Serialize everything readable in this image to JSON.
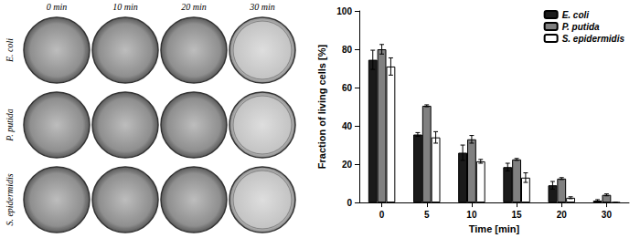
{
  "plates": {
    "columns": [
      "0 min",
      "10 min",
      "20 min",
      "30 min"
    ],
    "rows": [
      "E. coli",
      "P. putida",
      "S. epidermidis"
    ]
  },
  "chart_data": {
    "type": "bar",
    "x_label": "Time [min]",
    "y_label": "Fraction of living cells [%]",
    "categories": [
      "0",
      "5",
      "10",
      "15",
      "20",
      "30"
    ],
    "series": [
      {
        "name": "E. coli",
        "color": "#1a1a1a",
        "values": [
          74.5,
          35.5,
          26,
          18.5,
          9,
          1
        ],
        "errors": [
          5,
          1,
          4,
          2,
          2,
          0.5
        ]
      },
      {
        "name": "P. putida",
        "color": "#808080",
        "values": [
          80,
          50.5,
          33,
          22.5,
          12.5,
          4
        ],
        "errors": [
          2.5,
          0.5,
          2,
          0.5,
          0.5,
          0.5
        ]
      },
      {
        "name": "S. epidermidis",
        "color": "#ffffff",
        "values": [
          71,
          34,
          21.5,
          13,
          2.5,
          0
        ],
        "errors": [
          4.5,
          3,
          1,
          2.5,
          0.5,
          0
        ]
      }
    ],
    "ylim": [
      0,
      100
    ],
    "yticks": [
      0,
      20,
      40,
      60,
      80,
      100
    ],
    "grid": false,
    "legend": "upper right"
  }
}
